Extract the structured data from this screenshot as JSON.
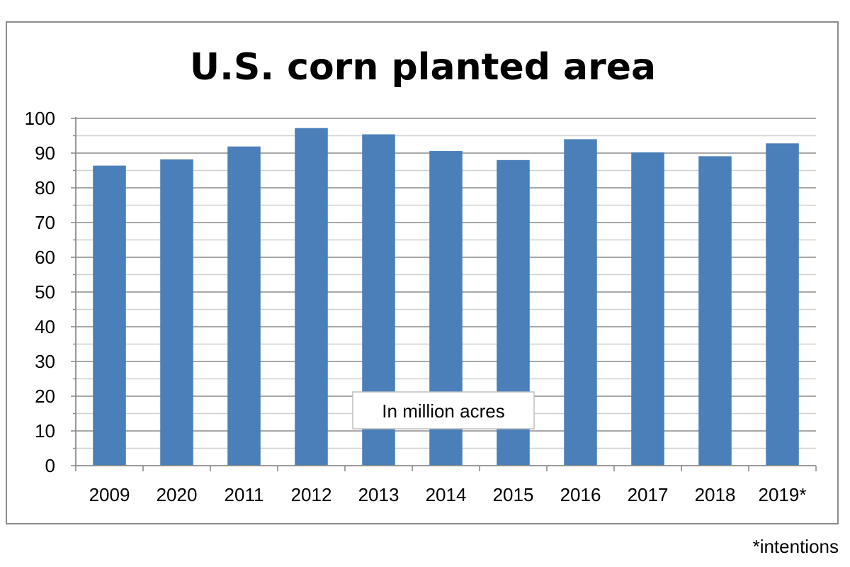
{
  "chart_data": {
    "type": "bar",
    "title": "U.S. corn planted area",
    "categories": [
      "2009",
      "2020",
      "2011",
      "2012",
      "2013",
      "2014",
      "2015",
      "2016",
      "2017",
      "2018",
      "2019*"
    ],
    "series": [
      {
        "values": [
          86.4,
          88.2,
          91.9,
          97.2,
          95.4,
          90.6,
          88.0,
          94.0,
          90.2,
          89.1,
          92.8
        ]
      }
    ],
    "ylim": [
      0,
      100
    ],
    "yticks": [
      0,
      10,
      20,
      30,
      40,
      50,
      60,
      70,
      80,
      90,
      100
    ],
    "annotation": "In million acres",
    "footnote": "*intentions",
    "bar_color": "#4a7fba",
    "grid": true,
    "legend": "none"
  }
}
